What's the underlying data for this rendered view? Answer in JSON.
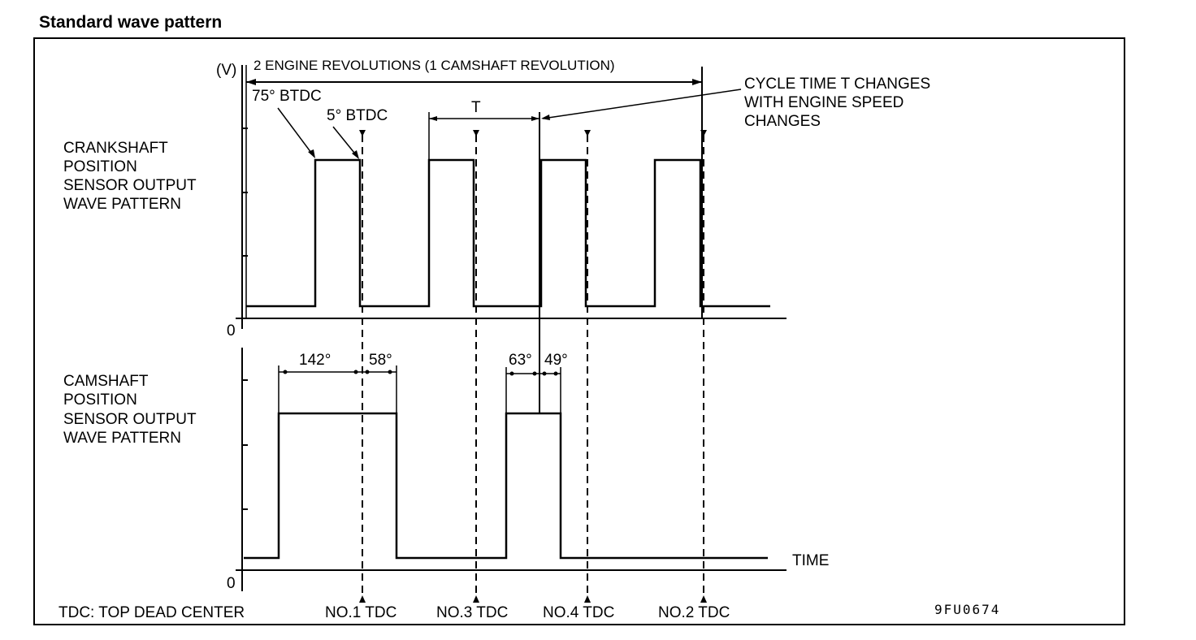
{
  "title": "Standard wave pattern",
  "y_unit": "(V)",
  "zero_label": "0",
  "revolutions_label": "2 ENGINE REVOLUTIONS (1 CAMSHAFT REVOLUTION)",
  "btdc75": "75° BTDC",
  "btdc5": "5° BTDC",
  "t_label": "T",
  "cycle_note": [
    "CYCLE TIME T CHANGES",
    "WITH ENGINE SPEED",
    "CHANGES"
  ],
  "crank_label": [
    "CRANKSHAFT",
    "POSITION",
    "SENSOR OUTPUT",
    "WAVE PATTERN"
  ],
  "cam_label": [
    "CAMSHAFT",
    "POSITION",
    "SENSOR OUTPUT",
    "WAVE PATTERN"
  ],
  "angles": {
    "a142": "142°",
    "a58": "58°",
    "a63": "63°",
    "a49": "49°"
  },
  "time_label": "TIME",
  "legend": "TDC: TOP DEAD CENTER",
  "tdc_labels": [
    "NO.1 TDC",
    "NO.3 TDC",
    "NO.4 TDC",
    "NO.2 TDC"
  ],
  "figure_code": "9FU0674"
}
